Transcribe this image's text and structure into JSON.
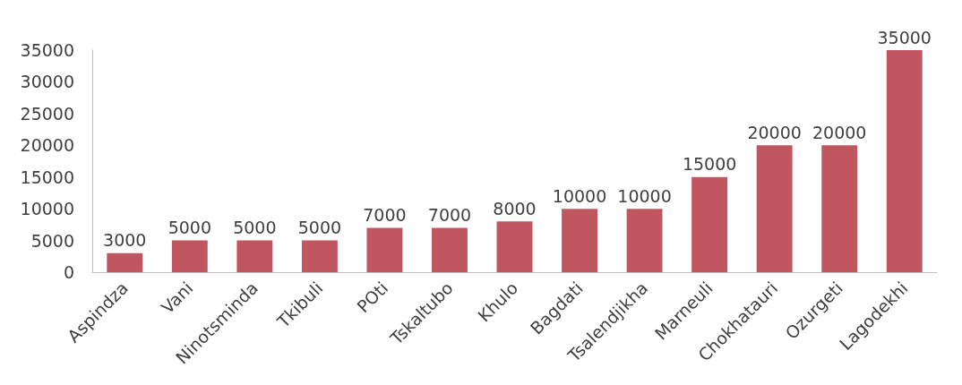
{
  "chart_data": {
    "type": "bar",
    "categories": [
      "Aspindza",
      "Vani",
      "Ninotsminda",
      "Tkibuli",
      "POti",
      "Tskaltubo",
      "Khulo",
      "Bagdati",
      "Tsalendjikha",
      "Marneuli",
      "Chokhatauri",
      "Ozurgeti",
      "Lagodekhi"
    ],
    "values": [
      3000,
      5000,
      5000,
      5000,
      7000,
      7000,
      8000,
      10000,
      10000,
      15000,
      20000,
      20000,
      35000
    ],
    "color": "#c0565f",
    "ylim": [
      0,
      35000
    ],
    "yticks": [
      0,
      5000,
      10000,
      15000,
      20000,
      25000,
      30000,
      35000
    ],
    "data_labels": true,
    "grid": false
  }
}
